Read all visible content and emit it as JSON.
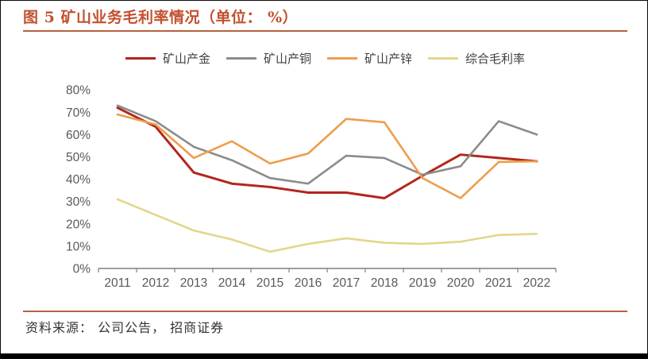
{
  "figure": {
    "title": "图 5 矿山业务毛利率情况（单位： %）",
    "source": "资料来源： 公司公告， 招商证券"
  },
  "colors": {
    "title_text": "#c2512f",
    "rule": "#b6613f",
    "axis_text": "#595959",
    "axis_line": "#7f7f7f",
    "frame_border": "#0a0a0a"
  },
  "chart_data": {
    "type": "line",
    "title": "图 5 矿山业务毛利率情况（单位： %）",
    "categories": [
      "2011",
      "2012",
      "2013",
      "2014",
      "2015",
      "2016",
      "2017",
      "2018",
      "2019",
      "2020",
      "2021",
      "2022"
    ],
    "series": [
      {
        "key": "mine-gold",
        "name": "矿山产金",
        "color": "#b2261c",
        "values": [
          72,
          63.5,
          43,
          38,
          36.5,
          34,
          34,
          31.5,
          41.5,
          51,
          49.5,
          48
        ]
      },
      {
        "key": "mine-copper",
        "name": "矿山产铜",
        "color": "#8c8c8c",
        "values": [
          73,
          66,
          54.5,
          48.5,
          40.5,
          38,
          50.5,
          49.5,
          42,
          45.8,
          66,
          60
        ]
      },
      {
        "key": "mine-zinc",
        "name": "矿山产锌",
        "color": "#ed9e4c",
        "values": [
          69,
          64.5,
          49.5,
          57,
          47,
          51.5,
          67,
          65.5,
          40.5,
          31.5,
          47.7,
          48
        ]
      },
      {
        "key": "overall-margin",
        "name": "综合毛利率",
        "color": "#e2d68c",
        "values": [
          31,
          24,
          17,
          13,
          7.5,
          11,
          13.5,
          11.5,
          11,
          12,
          15,
          15.5
        ]
      }
    ],
    "xlabel": "",
    "ylabel": "",
    "ylim": [
      0,
      80
    ],
    "ytick_step": 10,
    "yticklabels": [
      "0%",
      "10%",
      "20%",
      "30%",
      "40%",
      "50%",
      "60%",
      "70%",
      "80%"
    ],
    "grid": false,
    "legend_position": "top"
  }
}
